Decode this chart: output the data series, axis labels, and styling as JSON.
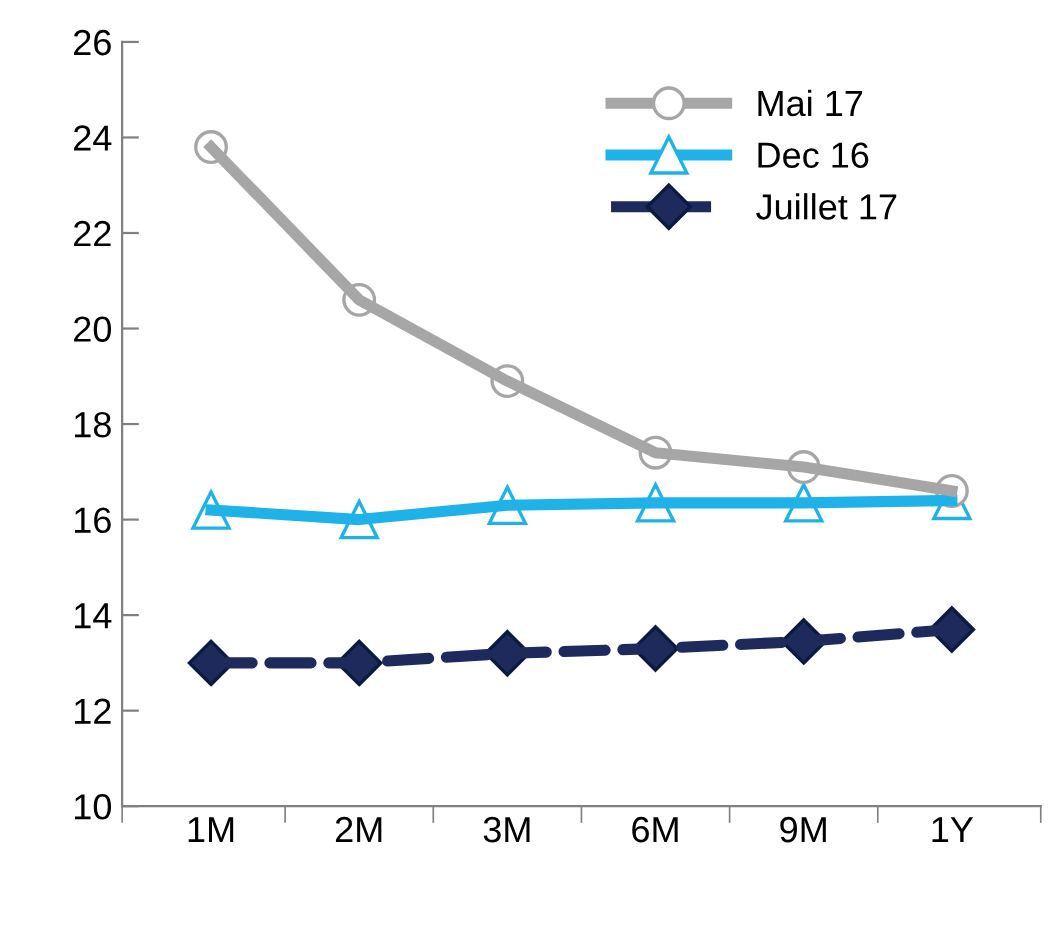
{
  "chart_data": {
    "type": "line",
    "categories": [
      "1M",
      "2M",
      "3M",
      "6M",
      "9M",
      "1Y"
    ],
    "series": [
      {
        "name": "Mai 17",
        "color": "#a6a6a6",
        "marker": "circle",
        "line_style": "solid",
        "values": [
          23.8,
          20.6,
          18.9,
          17.4,
          17.1,
          16.6
        ]
      },
      {
        "name": "Dec 16",
        "color": "#1fb2e8",
        "marker": "triangle",
        "line_style": "solid",
        "values": [
          16.2,
          16.0,
          16.3,
          16.35,
          16.35,
          16.4
        ]
      },
      {
        "name": "Juillet 17",
        "color": "#1f2a5c",
        "marker": "diamond",
        "line_style": "dashed",
        "values": [
          13.0,
          13.0,
          13.2,
          13.3,
          13.45,
          13.7
        ]
      }
    ],
    "ylim": [
      10,
      26
    ],
    "yticks": [
      10,
      12,
      14,
      16,
      18,
      20,
      22,
      24,
      26
    ],
    "grid": false,
    "legend": "top right"
  }
}
